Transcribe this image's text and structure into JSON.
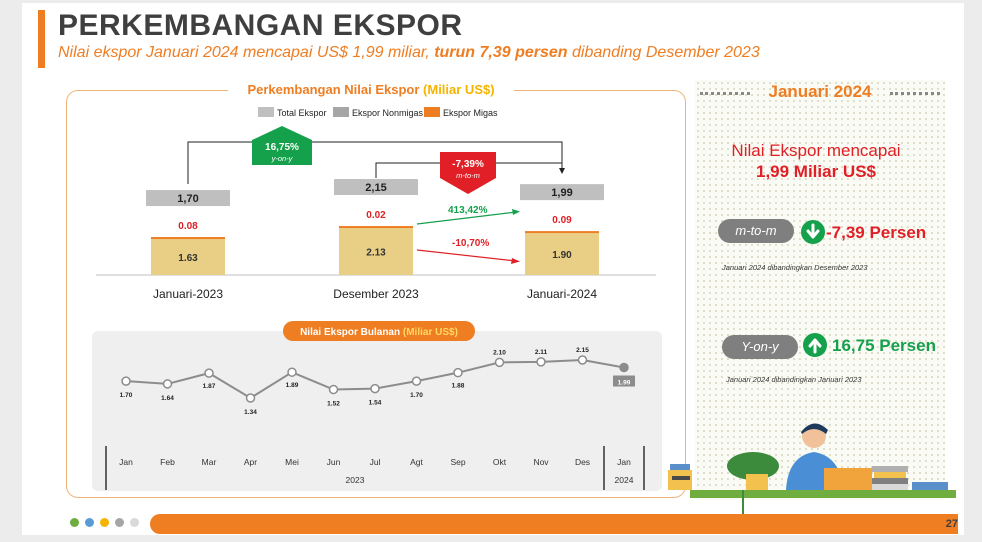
{
  "header": {
    "title": "PERKEMBANGAN EKSPOR",
    "subtitle_pre": "Nilai ekspor Januari 2024 mencapai US$ 1,99 miliar, ",
    "subtitle_bold": "turun 7,39 persen",
    "subtitle_post": " dibanding Desember 2023"
  },
  "page_number": "27",
  "right_panel": {
    "title": "Januari 2024",
    "summary_line1": "Nilai Ekspor mencapai",
    "summary_line2": "1,99 Miliar US$",
    "mtm_label": "m-to-m",
    "mtm_value": "-7,39 Persen",
    "mtm_note": "Januari 2024 dibandingkan Desember 2023",
    "yoy_label": "Y-on-y",
    "yoy_value": "16,75 Persen",
    "yoy_note": "Januari 2024 dibandingkan Januari 2023",
    "colors": {
      "down": "#e02026",
      "up": "#15a04b"
    }
  },
  "chart_data": [
    {
      "type": "bar",
      "title_pre": "Perkembangan Nilai Ekspor ",
      "title_unit": "(Miliar US$)",
      "legend": [
        "Total Ekspor",
        "Ekspor Nonmigas",
        "Ekspor Migas"
      ],
      "legend_colors": [
        "#c0c0c0",
        "#a6a6a6",
        "#ef7d22"
      ],
      "categories": [
        "Januari-2023",
        "Desember 2023",
        "Januari-2024"
      ],
      "series": [
        {
          "name": "Ekspor Nonmigas",
          "values": [
            1.63,
            2.13,
            1.9
          ],
          "labels": [
            "1.63",
            "2.13",
            "1.90"
          ]
        },
        {
          "name": "Ekspor Migas",
          "values": [
            0.08,
            0.02,
            0.09
          ],
          "labels": [
            "0.08",
            "0.02",
            "0.09"
          ]
        },
        {
          "name": "Total Ekspor",
          "values": [
            1.7,
            2.15,
            1.99
          ],
          "labels": [
            "1,70",
            "2,15",
            "1,99"
          ]
        }
      ],
      "annotations": {
        "yoy_label": "16,75%",
        "yoy_sub": "y-on-y",
        "mtm_label": "-7,39%",
        "mtm_sub": "m-to-m",
        "migas_change": "413,42%",
        "nonmigas_change": "-10,70%"
      },
      "colors": {
        "nonmigas": "#e8cf85",
        "migas": "#ef7d22",
        "total": "#bfbfbf",
        "yoy": "#15a04b",
        "mtm": "#e02026"
      },
      "ylim": [
        0,
        2.5
      ]
    },
    {
      "type": "line",
      "title_pre": "Nilai Ekspor Bulanan ",
      "title_unit": "(Miliar US$)",
      "categories": [
        "Jan",
        "Feb",
        "Mar",
        "Apr",
        "Mei",
        "Jun",
        "Jul",
        "Agt",
        "Sep",
        "Okt",
        "Nov",
        "Des",
        "Jan"
      ],
      "values": [
        1.7,
        1.64,
        1.87,
        1.34,
        1.89,
        1.52,
        1.54,
        1.7,
        1.88,
        2.1,
        2.11,
        2.15,
        1.99
      ],
      "labels": [
        "1.70",
        "1.64",
        "1.87",
        "1.34",
        "1.89",
        "1.52",
        "1.54",
        "1.70",
        "1.88",
        "2.10",
        "2.11",
        "2.15",
        "1.99"
      ],
      "year_labels": [
        "2023",
        "2024"
      ],
      "ylim": [
        1.0,
        2.4
      ]
    }
  ]
}
